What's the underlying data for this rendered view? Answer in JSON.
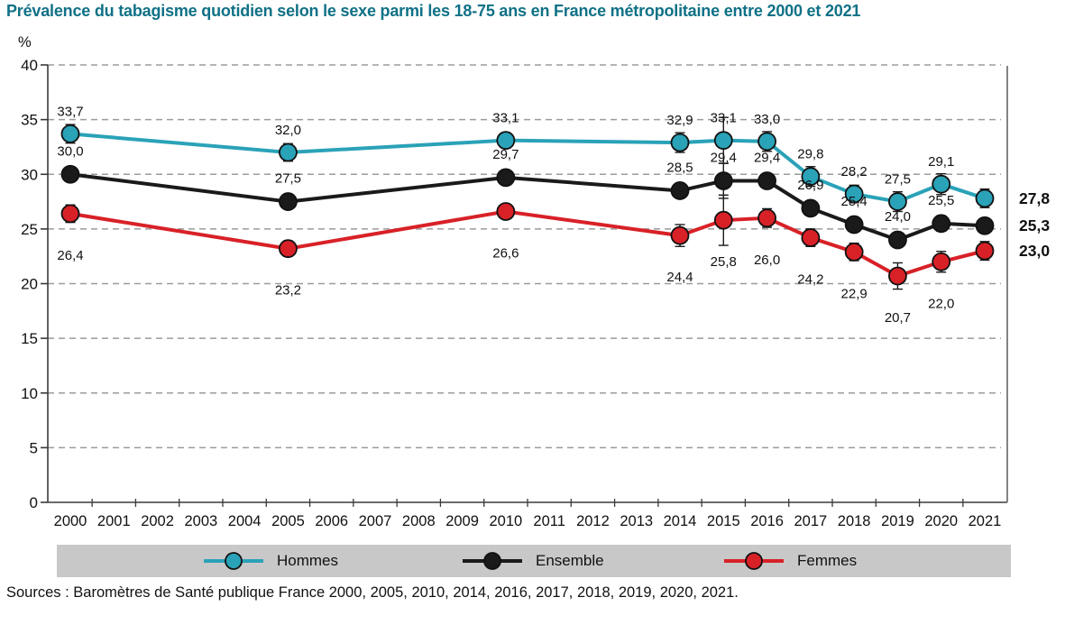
{
  "title": "Prévalence du tabagisme quotidien selon le sexe parmi les 18-75 ans en France métropolitaine entre 2000 et 2021",
  "source": "Sources : Baromètres de Santé publique France 2000, 2005, 2010, 2014, 2016, 2017, 2018, 2019, 2020, 2021.",
  "colors": {
    "title": "#0f7186",
    "hommes": "#2aa2b8",
    "ensemble": "#1a1a1a",
    "femmes": "#d82127",
    "legend_bar": "#c8c8c8",
    "grid": "#9b9b9b",
    "axis": "#3a3a3a"
  },
  "legend": {
    "items": [
      {
        "label": "Hommes",
        "color": "#2aa2b8"
      },
      {
        "label": "Ensemble",
        "color": "#1a1a1a"
      },
      {
        "label": "Femmes",
        "color": "#d82127"
      }
    ]
  },
  "end_labels": {
    "hommes": "27,8",
    "ensemble": "25,3",
    "femmes": "23,0"
  },
  "chart_data": {
    "type": "line",
    "title": "Prévalence du tabagisme quotidien selon le sexe parmi les 18-75 ans en France métropolitaine entre 2000 et 2021",
    "ylabel": "%",
    "ylim": [
      0,
      40
    ],
    "y_ticks": [
      0,
      5,
      10,
      15,
      20,
      25,
      30,
      35,
      40
    ],
    "grid": true,
    "legend_position": "bottom",
    "x_axis_ticks": [
      2000,
      2001,
      2002,
      2003,
      2004,
      2005,
      2006,
      2007,
      2008,
      2009,
      2010,
      2011,
      2012,
      2013,
      2014,
      2015,
      2016,
      2017,
      2018,
      2019,
      2020,
      2021
    ],
    "x": [
      2000,
      2005,
      2010,
      2014,
      2015,
      2016,
      2017,
      2018,
      2019,
      2020,
      2021
    ],
    "series": [
      {
        "name": "Hommes",
        "color": "#2aa2b8",
        "values": [
          33.7,
          32.0,
          33.1,
          32.9,
          33.1,
          33.0,
          29.8,
          28.2,
          27.5,
          29.1,
          27.8
        ],
        "ci": [
          0.85,
          0.8,
          0.7,
          0.9,
          2.1,
          0.9,
          0.9,
          0.8,
          0.9,
          0.95,
          0.85
        ]
      },
      {
        "name": "Ensemble",
        "color": "#1a1a1a",
        "values": [
          30.0,
          27.5,
          29.7,
          28.5,
          29.4,
          29.4,
          26.9,
          25.4,
          24.0,
          25.5,
          25.3
        ],
        "ci": [
          0.6,
          0.55,
          0.5,
          0.65,
          1.6,
          0.65,
          0.6,
          0.55,
          0.65,
          0.7,
          0.6
        ]
      },
      {
        "name": "Femmes",
        "color": "#d82127",
        "values": [
          26.4,
          23.2,
          26.6,
          24.4,
          25.8,
          26.0,
          24.2,
          22.9,
          20.7,
          22.0,
          23.0
        ],
        "ci": [
          0.8,
          0.7,
          0.65,
          1.0,
          2.3,
          0.85,
          0.8,
          0.8,
          1.2,
          0.95,
          0.85
        ]
      }
    ]
  }
}
